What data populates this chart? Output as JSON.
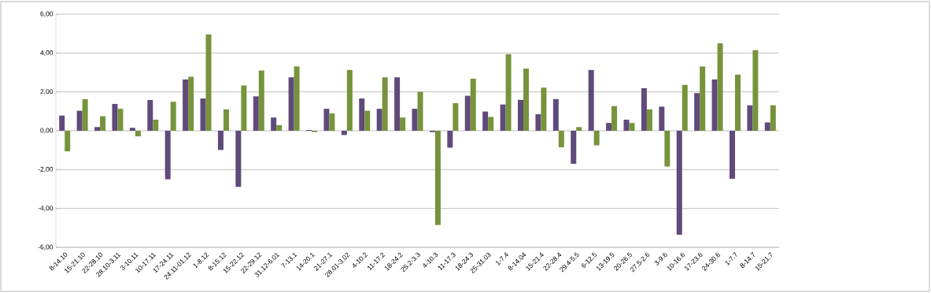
{
  "chart_data": {
    "type": "bar",
    "categories": [
      "8-14.10",
      "15-21.10",
      "22-28.10",
      "28.10-3.11",
      "3-10.11",
      "10-17.11",
      "17-24.11",
      "24.11-01.12",
      "1-8.12",
      "8-15.12",
      "15-22.12",
      "22-29.12",
      "31.12-6.01",
      "7-13.1",
      "14-20.1",
      "21-27.1",
      "28.01-3.02",
      "4-10.2",
      "11-17.2",
      "18-24.2",
      "25.2-3.3",
      "4-10.3",
      "11-17.3",
      "18-24.3",
      "25-31.03",
      "1-7.4",
      "8-14.04",
      "15-21.4",
      "22-28.4",
      "29.4-5.5",
      "6-12.5",
      "13-19.5",
      "20-26.5",
      "27.5-2.6",
      "3-9.6",
      "10-16.6",
      "17-23.6",
      "24-30.6",
      "1-7.7",
      "8-14.7",
      "15-21.7"
    ],
    "series": [
      {
        "color": "#604a7b",
        "values": [
          0.78,
          1.03,
          0.19,
          1.38,
          0.15,
          1.58,
          -2.5,
          2.64,
          1.66,
          -0.99,
          -2.89,
          1.77,
          0.68,
          2.75,
          0.04,
          1.13,
          -0.22,
          1.66,
          1.13,
          2.75,
          1.13,
          -0.07,
          -0.87,
          1.8,
          0.99,
          1.35,
          1.59,
          0.85,
          1.63,
          -1.7,
          3.13,
          0.4,
          0.57,
          2.19,
          1.24,
          -5.35,
          1.94,
          2.64,
          -2.47,
          1.31,
          0.43
        ]
      },
      {
        "color": "#77933c",
        "values": [
          -1.06,
          1.63,
          0.75,
          1.13,
          -0.29,
          0.57,
          1.49,
          2.78,
          4.96,
          1.1,
          2.33,
          3.1,
          0.29,
          3.31,
          -0.07,
          0.89,
          3.13,
          1.03,
          2.75,
          0.68,
          2.0,
          -4.85,
          1.42,
          2.68,
          0.71,
          3.94,
          3.2,
          2.22,
          -0.85,
          0.19,
          -0.75,
          1.27,
          0.4,
          1.1,
          -1.84,
          2.36,
          3.31,
          4.5,
          2.89,
          4.15,
          1.31
        ]
      }
    ],
    "ylim": [
      -6,
      6
    ],
    "yticks": [
      {
        "value": -6,
        "label": "-6,00"
      },
      {
        "value": -4,
        "label": "-4,00"
      },
      {
        "value": -2,
        "label": "-2,00"
      },
      {
        "value": 0,
        "label": "0,00"
      },
      {
        "value": 2,
        "label": "2,00"
      },
      {
        "value": 4,
        "label": "4,00"
      },
      {
        "value": 6,
        "label": "6,00"
      }
    ],
    "grid": "y"
  }
}
